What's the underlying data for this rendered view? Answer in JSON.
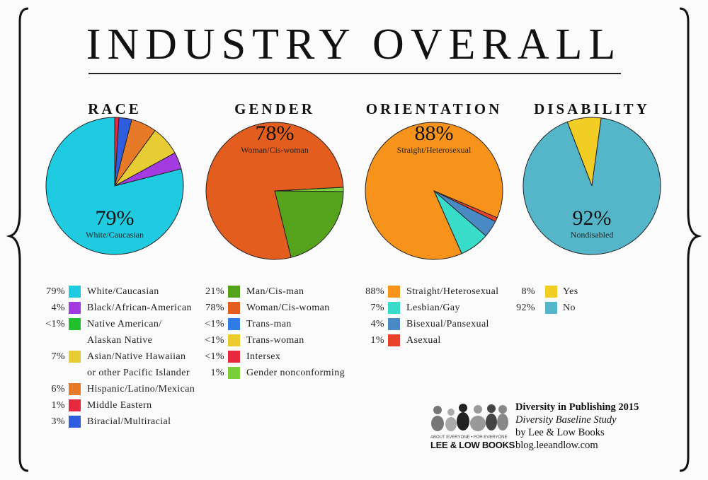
{
  "title": "INDUSTRY OVERALL",
  "chart_data": [
    {
      "type": "pie",
      "title": "RACE",
      "callout": {
        "value": "79%",
        "label": "White/Caucasian"
      },
      "slices": [
        {
          "label": "White/Caucasian",
          "pct_label": "79%",
          "value": 79,
          "color": "#1ecbe1"
        },
        {
          "label": "Black/African-American",
          "pct_label": "4%",
          "value": 4,
          "color": "#a43be0"
        },
        {
          "label": "Native American/ Alaskan Native",
          "pct_label": "<1%",
          "value": 0,
          "color": "#22c02c"
        },
        {
          "label": "Asian/Native Hawaiian or other Pacific Islander",
          "pct_label": "7%",
          "value": 7,
          "color": "#e8cc34"
        },
        {
          "label": "Hispanic/Latino/Mexican",
          "pct_label": "6%",
          "value": 6,
          "color": "#e77a26"
        },
        {
          "label": "Middle Eastern",
          "pct_label": "1%",
          "value": 1,
          "color": "#e8283e"
        },
        {
          "label": "Biracial/Multiracial",
          "pct_label": "3%",
          "value": 3,
          "color": "#2f5de0"
        }
      ]
    },
    {
      "type": "pie",
      "title": "GENDER",
      "callout": {
        "value": "78%",
        "label": "Woman/Cis-woman"
      },
      "slices": [
        {
          "label": "Man/Cis-man",
          "pct_label": "21%",
          "value": 21,
          "color": "#55a31a"
        },
        {
          "label": "Woman/Cis-woman",
          "pct_label": "78%",
          "value": 78,
          "color": "#e25d1e"
        },
        {
          "label": "Trans-man",
          "pct_label": "<1%",
          "value": 0,
          "color": "#2f7ee6"
        },
        {
          "label": "Trans-woman",
          "pct_label": "<1%",
          "value": 0,
          "color": "#eccb2e"
        },
        {
          "label": "Intersex",
          "pct_label": "<1%",
          "value": 0,
          "color": "#e8283e"
        },
        {
          "label": "Gender nonconforming",
          "pct_label": "1%",
          "value": 1,
          "color": "#7ccd3a"
        }
      ]
    },
    {
      "type": "pie",
      "title": "ORIENTATION",
      "callout": {
        "value": "88%",
        "label": "Straight/Heterosexual"
      },
      "slices": [
        {
          "label": "Straight/Heterosexual",
          "pct_label": "88%",
          "value": 88,
          "color": "#f7931a"
        },
        {
          "label": "Lesbian/Gay",
          "pct_label": "7%",
          "value": 7,
          "color": "#39dbc9"
        },
        {
          "label": "Bisexual/Pansexual",
          "pct_label": "4%",
          "value": 4,
          "color": "#4a8ac4"
        },
        {
          "label": "Asexual",
          "pct_label": "1%",
          "value": 1,
          "color": "#e8412c"
        }
      ]
    },
    {
      "type": "pie",
      "title": "DISABILITY",
      "callout": {
        "value": "92%",
        "label": "Nondisabled"
      },
      "slices": [
        {
          "label": "Yes",
          "pct_label": "8%",
          "value": 8,
          "color": "#f2cd24"
        },
        {
          "label": "No",
          "pct_label": "92%",
          "value": 92,
          "color": "#55b6c9"
        }
      ]
    }
  ],
  "credits": {
    "line1": "Diversity in Publishing 2015",
    "line2": "Diversity Baseline Study",
    "line3": "by Lee & Low Books",
    "line4": "blog.leeandlow.com"
  },
  "logo": {
    "tagline": "ABOUT EVERYONE • FOR EVERYONE",
    "name": "LEE & LOW BOOKS"
  }
}
